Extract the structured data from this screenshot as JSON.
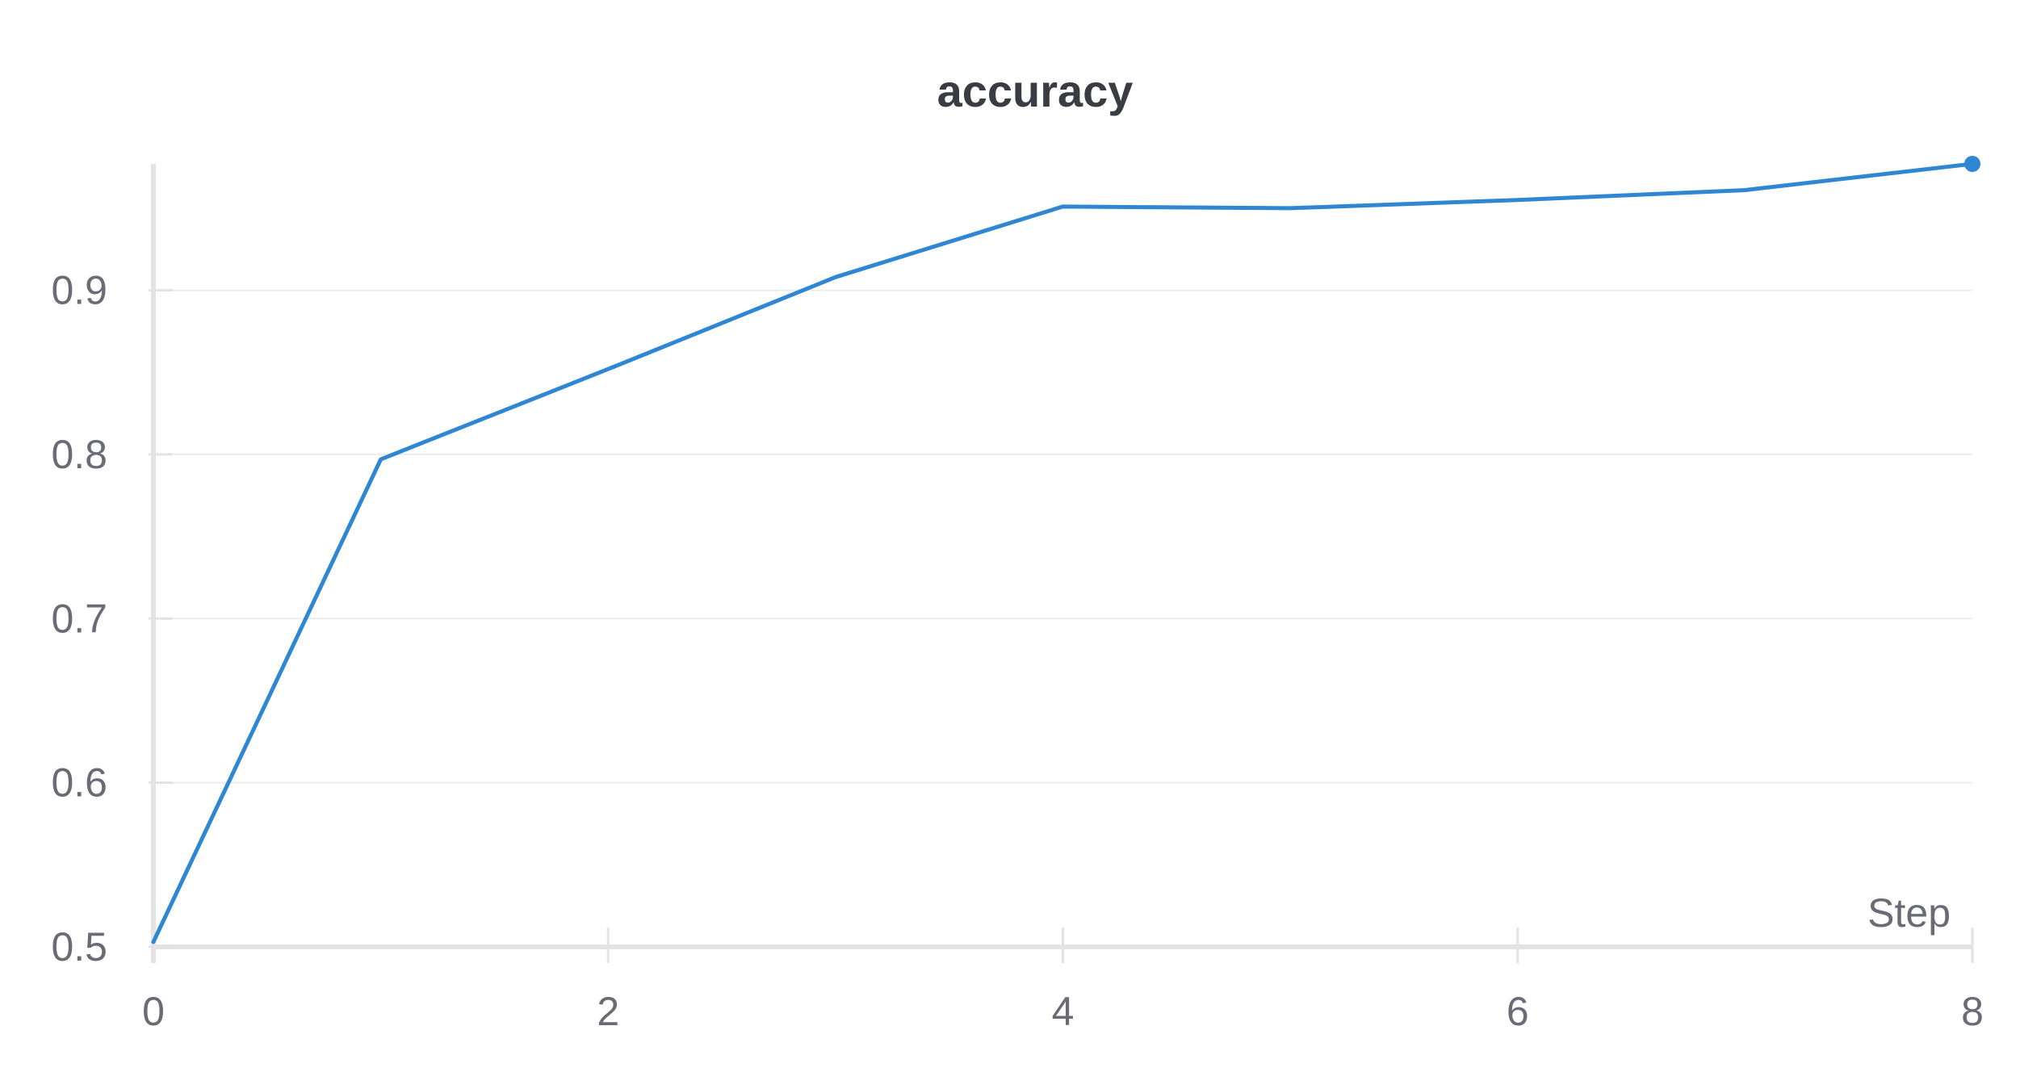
{
  "chart_data": {
    "type": "line",
    "title": "accuracy",
    "xlabel": "Step",
    "ylabel": "",
    "x": [
      0,
      1,
      2,
      3,
      4,
      5,
      6,
      7,
      8
    ],
    "series": [
      {
        "values": [
          0.503,
          0.797,
          0.852,
          0.908,
          0.951,
          0.95,
          0.955,
          0.961,
          0.977
        ],
        "color": "#2f87d3"
      }
    ],
    "xlim": [
      0,
      8
    ],
    "ylim": [
      0.5,
      0.977
    ],
    "xticks": [
      "0",
      "2",
      "4",
      "6",
      "8"
    ],
    "yticks": [
      "0.5",
      "0.6",
      "0.7",
      "0.8",
      "0.9"
    ],
    "grid": true,
    "last_point_marker": true,
    "colors": {
      "title": "#3b3b44",
      "tick_text": "#6b6b76",
      "axis": "#e3e3e6",
      "grid": "#ececef"
    }
  }
}
